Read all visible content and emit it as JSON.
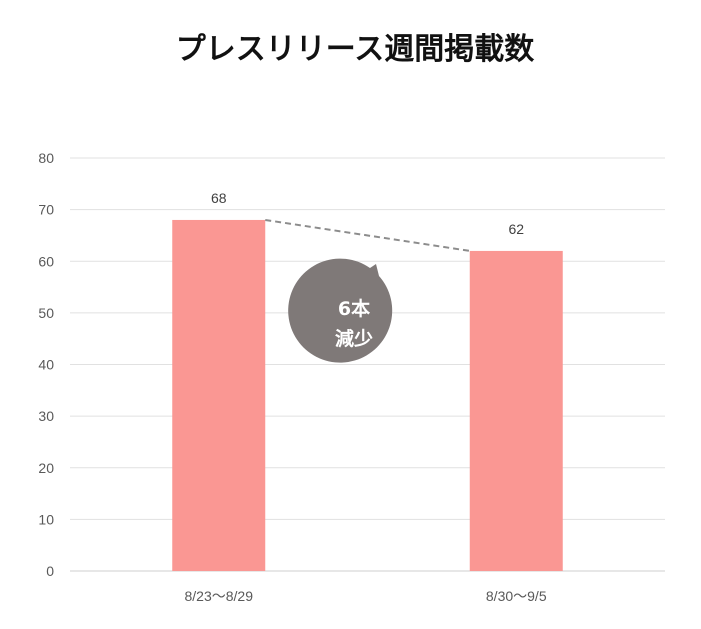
{
  "chart_data": {
    "type": "bar",
    "title": "プレスリリース週間掲載数",
    "xlabel": "",
    "ylabel": "",
    "categories": [
      "8/23〜8/29",
      "8/30〜9/5"
    ],
    "values": [
      68,
      62
    ],
    "ylim": [
      0,
      80
    ],
    "yticks": [
      0,
      10,
      20,
      30,
      40,
      50,
      60,
      70,
      80
    ],
    "grid": true,
    "legend": "none",
    "bar_color": "#fa9793",
    "trend_line_color": "#8c8c8c",
    "annotation": {
      "line1": "6本",
      "line2": "減少",
      "color": "#7f7978"
    }
  }
}
